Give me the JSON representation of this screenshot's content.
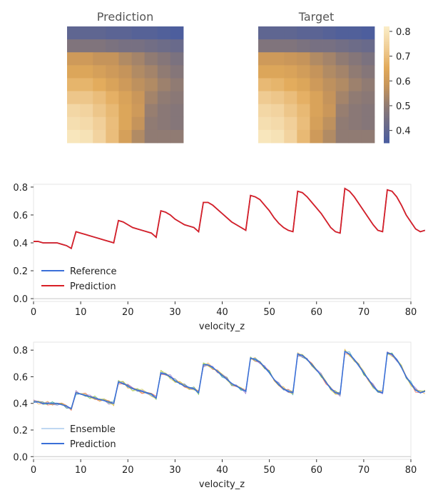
{
  "chart_data": [
    {
      "type": "heatmap",
      "title": "Prediction",
      "rows": 9,
      "cols": 9,
      "values": [
        [
          0.4,
          0.4,
          0.4,
          0.39,
          0.39,
          0.38,
          0.38,
          0.37,
          0.36
        ],
        [
          0.47,
          0.47,
          0.47,
          0.46,
          0.45,
          0.45,
          0.44,
          0.43,
          0.42
        ],
        [
          0.6,
          0.6,
          0.58,
          0.58,
          0.55,
          0.53,
          0.5,
          0.48,
          0.46
        ],
        [
          0.64,
          0.64,
          0.62,
          0.6,
          0.58,
          0.55,
          0.53,
          0.5,
          0.48
        ],
        [
          0.68,
          0.68,
          0.66,
          0.63,
          0.6,
          0.57,
          0.55,
          0.52,
          0.5
        ],
        [
          0.72,
          0.72,
          0.7,
          0.67,
          0.63,
          0.59,
          0.53,
          0.5,
          0.49
        ],
        [
          0.76,
          0.75,
          0.72,
          0.69,
          0.64,
          0.6,
          0.51,
          0.49,
          0.48
        ],
        [
          0.78,
          0.77,
          0.74,
          0.7,
          0.64,
          0.58,
          0.5,
          0.49,
          0.48
        ],
        [
          0.8,
          0.79,
          0.75,
          0.7,
          0.62,
          0.55,
          0.5,
          0.5,
          0.5
        ]
      ]
    },
    {
      "type": "heatmap",
      "title": "Target",
      "rows": 9,
      "cols": 9,
      "values": [
        [
          0.4,
          0.4,
          0.4,
          0.39,
          0.39,
          0.38,
          0.37,
          0.37,
          0.36
        ],
        [
          0.47,
          0.47,
          0.47,
          0.46,
          0.45,
          0.45,
          0.44,
          0.43,
          0.42
        ],
        [
          0.6,
          0.6,
          0.59,
          0.58,
          0.55,
          0.53,
          0.5,
          0.48,
          0.46
        ],
        [
          0.64,
          0.64,
          0.63,
          0.61,
          0.58,
          0.55,
          0.53,
          0.5,
          0.48
        ],
        [
          0.69,
          0.68,
          0.66,
          0.64,
          0.6,
          0.57,
          0.55,
          0.52,
          0.5
        ],
        [
          0.73,
          0.72,
          0.7,
          0.67,
          0.63,
          0.58,
          0.53,
          0.5,
          0.49
        ],
        [
          0.76,
          0.75,
          0.72,
          0.69,
          0.63,
          0.59,
          0.51,
          0.49,
          0.48
        ],
        [
          0.78,
          0.77,
          0.74,
          0.7,
          0.62,
          0.57,
          0.5,
          0.49,
          0.48
        ],
        [
          0.8,
          0.79,
          0.75,
          0.69,
          0.6,
          0.55,
          0.5,
          0.5,
          0.5
        ]
      ],
      "colorbar": {
        "min": 0.35,
        "max": 0.82,
        "ticks": [
          0.4,
          0.5,
          0.6,
          0.7,
          0.8
        ]
      }
    },
    {
      "type": "line",
      "xlabel": "velocity_z",
      "xlim": [
        0,
        80
      ],
      "ylim": [
        -0.02,
        0.82
      ],
      "xticks": [
        0,
        10,
        20,
        30,
        40,
        50,
        60,
        70,
        80
      ],
      "yticks": [
        0.0,
        0.2,
        0.4,
        0.6,
        0.8
      ],
      "legend": "lower-left",
      "series": [
        {
          "name": "Reference",
          "color": "#3a6fd8",
          "values": [
            0.41,
            0.41,
            0.4,
            0.4,
            0.4,
            0.4,
            0.39,
            0.38,
            0.36,
            0.48,
            0.47,
            0.46,
            0.45,
            0.44,
            0.43,
            0.42,
            0.41,
            0.4,
            0.56,
            0.55,
            0.53,
            0.51,
            0.5,
            0.49,
            0.48,
            0.47,
            0.44,
            0.63,
            0.62,
            0.6,
            0.57,
            0.55,
            0.53,
            0.52,
            0.51,
            0.48,
            0.69,
            0.69,
            0.67,
            0.64,
            0.61,
            0.58,
            0.55,
            0.53,
            0.51,
            0.49,
            0.74,
            0.73,
            0.71,
            0.67,
            0.63,
            0.58,
            0.54,
            0.51,
            0.49,
            0.48,
            0.77,
            0.76,
            0.73,
            0.69,
            0.65,
            0.61,
            0.56,
            0.51,
            0.48,
            0.47,
            0.79,
            0.77,
            0.73,
            0.68,
            0.63,
            0.58,
            0.53,
            0.49,
            0.48,
            0.78,
            0.77,
            0.73,
            0.67,
            0.6,
            0.55,
            0.5,
            0.48,
            0.49
          ]
        },
        {
          "name": "Prediction",
          "color": "#d81f26",
          "values": [
            0.41,
            0.41,
            0.4,
            0.4,
            0.4,
            0.4,
            0.39,
            0.38,
            0.36,
            0.48,
            0.47,
            0.46,
            0.45,
            0.44,
            0.43,
            0.42,
            0.41,
            0.4,
            0.56,
            0.55,
            0.53,
            0.51,
            0.5,
            0.49,
            0.48,
            0.47,
            0.44,
            0.63,
            0.62,
            0.6,
            0.57,
            0.55,
            0.53,
            0.52,
            0.51,
            0.48,
            0.69,
            0.69,
            0.67,
            0.64,
            0.61,
            0.58,
            0.55,
            0.53,
            0.51,
            0.49,
            0.74,
            0.73,
            0.71,
            0.67,
            0.63,
            0.58,
            0.54,
            0.51,
            0.49,
            0.48,
            0.77,
            0.76,
            0.73,
            0.69,
            0.65,
            0.61,
            0.56,
            0.51,
            0.48,
            0.47,
            0.79,
            0.77,
            0.73,
            0.68,
            0.63,
            0.58,
            0.53,
            0.49,
            0.48,
            0.78,
            0.77,
            0.73,
            0.67,
            0.6,
            0.55,
            0.5,
            0.48,
            0.49
          ]
        }
      ]
    },
    {
      "type": "line",
      "xlabel": "velocity_z",
      "xlim": [
        0,
        80
      ],
      "ylim": [
        -0.02,
        0.86
      ],
      "xticks": [
        0,
        10,
        20,
        30,
        40,
        50,
        60,
        70,
        80
      ],
      "yticks": [
        0.0,
        0.2,
        0.4,
        0.6,
        0.8
      ],
      "legend": "lower-left",
      "ensemble_colors": [
        "#e6553a",
        "#f0a030",
        "#6fbf4a",
        "#3fa8b8",
        "#8f6fd0",
        "#c9c94a"
      ],
      "series": [
        {
          "name": "Ensemble",
          "color": "#7fb0e6",
          "values": [
            0.41,
            0.41,
            0.4,
            0.4,
            0.4,
            0.4,
            0.39,
            0.38,
            0.36,
            0.48,
            0.47,
            0.46,
            0.45,
            0.44,
            0.43,
            0.42,
            0.41,
            0.4,
            0.56,
            0.55,
            0.53,
            0.51,
            0.5,
            0.49,
            0.48,
            0.47,
            0.44,
            0.63,
            0.62,
            0.6,
            0.57,
            0.55,
            0.53,
            0.52,
            0.51,
            0.48,
            0.69,
            0.69,
            0.67,
            0.64,
            0.61,
            0.58,
            0.55,
            0.53,
            0.51,
            0.49,
            0.74,
            0.73,
            0.71,
            0.67,
            0.63,
            0.58,
            0.54,
            0.51,
            0.49,
            0.48,
            0.77,
            0.76,
            0.73,
            0.69,
            0.65,
            0.61,
            0.56,
            0.51,
            0.48,
            0.47,
            0.79,
            0.77,
            0.73,
            0.68,
            0.63,
            0.58,
            0.53,
            0.49,
            0.48,
            0.78,
            0.77,
            0.73,
            0.67,
            0.6,
            0.55,
            0.5,
            0.48,
            0.49
          ]
        },
        {
          "name": "Prediction",
          "color": "#3a6fd8",
          "values": [
            0.41,
            0.41,
            0.4,
            0.4,
            0.4,
            0.4,
            0.39,
            0.38,
            0.36,
            0.48,
            0.47,
            0.46,
            0.45,
            0.44,
            0.43,
            0.42,
            0.41,
            0.4,
            0.56,
            0.55,
            0.53,
            0.51,
            0.5,
            0.49,
            0.48,
            0.47,
            0.44,
            0.63,
            0.62,
            0.6,
            0.57,
            0.55,
            0.53,
            0.52,
            0.51,
            0.48,
            0.69,
            0.69,
            0.67,
            0.64,
            0.61,
            0.58,
            0.55,
            0.53,
            0.51,
            0.49,
            0.74,
            0.73,
            0.71,
            0.67,
            0.63,
            0.58,
            0.54,
            0.51,
            0.49,
            0.48,
            0.77,
            0.76,
            0.73,
            0.69,
            0.65,
            0.61,
            0.56,
            0.51,
            0.48,
            0.47,
            0.79,
            0.77,
            0.73,
            0.68,
            0.63,
            0.58,
            0.53,
            0.49,
            0.48,
            0.78,
            0.77,
            0.73,
            0.67,
            0.6,
            0.55,
            0.5,
            0.48,
            0.49
          ]
        }
      ]
    }
  ]
}
